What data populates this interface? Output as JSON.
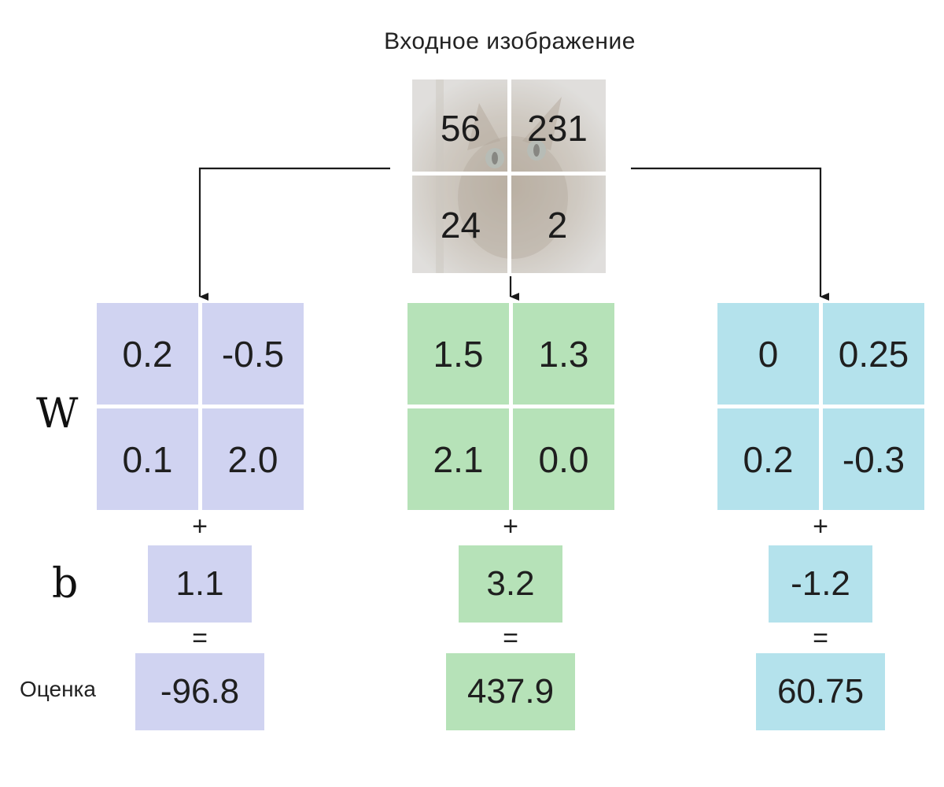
{
  "title": "Входное изображение",
  "input_pixels": [
    "56",
    "231",
    "24",
    "2"
  ],
  "labels": {
    "weights": "W",
    "bias": "b",
    "score": "Оценка"
  },
  "operators": {
    "plus": "+",
    "equals": "="
  },
  "classes": [
    {
      "color": "#d0d3f1",
      "weights": [
        "0.2",
        "-0.5",
        "0.1",
        "2.0"
      ],
      "bias": "1.1",
      "score": "-96.8"
    },
    {
      "color": "#b6e2b8",
      "weights": [
        "1.5",
        "1.3",
        "2.1",
        "0.0"
      ],
      "bias": "3.2",
      "score": "437.9"
    },
    {
      "color": "#b4e2ec",
      "weights": [
        "0",
        "0.25",
        "0.2",
        "-0.3"
      ],
      "bias": "-1.2",
      "score": "60.75"
    }
  ]
}
